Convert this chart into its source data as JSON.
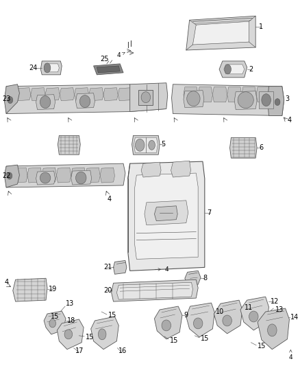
{
  "bg_color": "#ffffff",
  "fig_width": 4.38,
  "fig_height": 5.33,
  "dpi": 100,
  "label_color": "#000000",
  "line_color": "#444444",
  "part_fill": "#e8e8e8",
  "part_edge": "#555555",
  "dark_fill": "#999999",
  "mid_fill": "#cccccc",
  "light_fill": "#f0f0f0"
}
